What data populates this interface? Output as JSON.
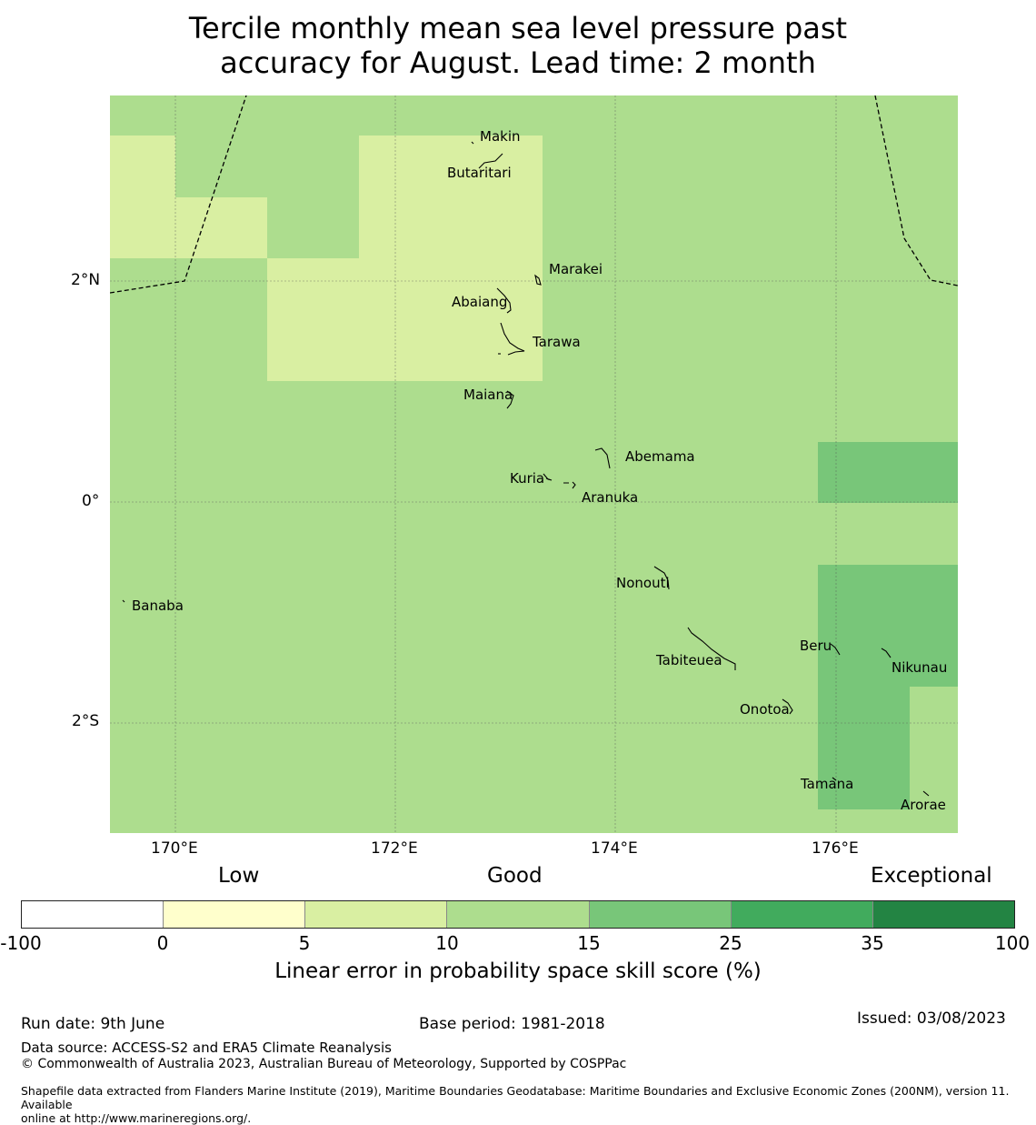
{
  "title_line1": "Tercile monthly mean sea level pressure past",
  "title_line2": "accuracy for August. Lead time: 2 month",
  "map": {
    "latitude_labels": [
      "2°N",
      "0°",
      "2°S"
    ],
    "longitude_labels": [
      "170°E",
      "172°E",
      "174°E",
      "176°E"
    ],
    "places": [
      "Makin",
      "Butaritari",
      "Marakei",
      "Abaiang",
      "Tarawa",
      "Maiana",
      "Abemama",
      "Kuria",
      "Aranuka",
      "Banaba",
      "Nonouti",
      "Beru",
      "Nikunau",
      "Tabiteuea",
      "Onotoa",
      "Tamana",
      "Arorae"
    ],
    "fill_colors": {
      "band_5_10": "#d9efa2",
      "band_10_15": "#addd8e",
      "band_15_25": "#78c679"
    }
  },
  "legend": {
    "categories": [
      "Low",
      "Good",
      "Exceptional"
    ],
    "ticks": [
      "-100",
      "0",
      "5",
      "10",
      "15",
      "25",
      "35",
      "100"
    ],
    "colors": [
      "#ffffff",
      "#ffffcc",
      "#d9efa2",
      "#addd8e",
      "#78c679",
      "#41ab5d",
      "#238443"
    ],
    "title": "Linear error in probability space skill score (%)"
  },
  "footer": {
    "run_date": "Run date: 9th June",
    "base_period": "Base period: 1981-2018",
    "issued": "Issued: 03/08/2023",
    "data_source": "Data source: ACCESS-S2 and ERA5 Climate Reanalysis",
    "copyright": "© Commonwealth of Australia 2023, Australian Bureau of Meteorology, Supported by COSPPac",
    "shapefile_line1": "Shapefile data extracted from Flanders Marine Institute (2019), Maritime Boundaries Geodatabase: Maritime Boundaries and Exclusive Economic Zones (200NM), version 11. Available",
    "shapefile_line2": "online at http://www.marineregions.org/."
  }
}
